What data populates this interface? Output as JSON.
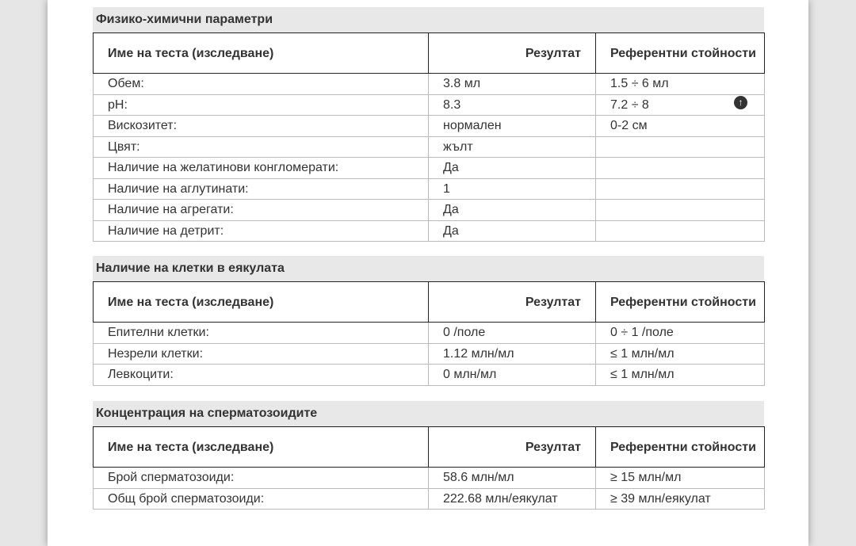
{
  "headers": {
    "name": "Име на теста (изследване)",
    "result": "Резултат",
    "reference": "Референтни стойности"
  },
  "sections": [
    {
      "title": "Физико-химични параметри",
      "rows": [
        [
          "Обем:",
          "3.8 мл",
          "1.5 ÷ 6 мл"
        ],
        [
          "pH:",
          "8.3",
          "7.2 ÷ 8"
        ],
        [
          "Вискозитет:",
          "нормален",
          "0-2 см"
        ],
        [
          "Цвят:",
          "жълт",
          ""
        ],
        [
          "Наличие на желатинови конгломерати:",
          "Да",
          ""
        ],
        [
          "Наличие на аглутинати:",
          "1",
          ""
        ],
        [
          "Наличие на агрегати:",
          "Да",
          ""
        ],
        [
          "Наличие на детрит:",
          "Да",
          ""
        ]
      ]
    },
    {
      "title": "Наличие на клетки в еякулата",
      "rows": [
        [
          "Епителни клетки:",
          "0 /поле",
          "0 ÷ 1 /поле"
        ],
        [
          "Незрели клетки:",
          "1.12 млн/мл",
          "≤ 1 млн/мл"
        ],
        [
          "Левкоцити:",
          "0 млн/мл",
          "≤ 1 млн/мл"
        ]
      ]
    },
    {
      "title": "Концентрация на сперматозоидите",
      "rows": [
        [
          "Брой сперматозоиди:",
          "58.6 млн/мл",
          "≥ 15 млн/мл"
        ],
        [
          "Общ брой сперматозоиди:",
          "222.68 млн/еякулат",
          "≥ 39 млн/еякулат"
        ]
      ]
    }
  ],
  "icons": {
    "flag": "arrow-up-circle-icon"
  }
}
